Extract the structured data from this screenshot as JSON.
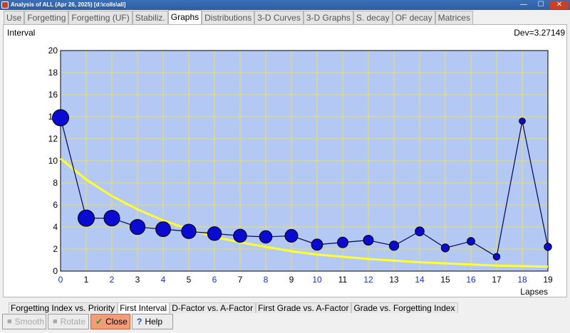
{
  "window": {
    "title": "Analysis of ALL (Apr 26, 2025) [d:\\colls\\all]",
    "min_glyph": "—",
    "max_glyph": "☐",
    "close_glyph": "✕"
  },
  "tabs": [
    "Use",
    "Forgetting",
    "Forgetting (UF)",
    "Stabiliz.",
    "Graphs",
    "Distributions",
    "3-D Curves",
    "3-D Graphs",
    "S. decay",
    "OF decay",
    "Matrices"
  ],
  "active_tab": "Graphs",
  "graph": {
    "y_axis_label": "Interval",
    "deviation": "Dev=3.27149"
  },
  "chart_data": {
    "type": "scatter",
    "xlabel": "Lapses",
    "ylabel": "Interval",
    "xlim": [
      0,
      19
    ],
    "ylim": [
      0,
      20
    ],
    "x_ticks": [
      0,
      1,
      2,
      3,
      4,
      5,
      6,
      7,
      8,
      9,
      10,
      11,
      12,
      13,
      14,
      15,
      16,
      17,
      18,
      19
    ],
    "y_ticks": [
      0,
      2,
      4,
      6,
      8,
      10,
      12,
      14,
      16,
      18,
      20
    ],
    "grid": true,
    "series": [
      {
        "x": [
          0,
          1,
          2,
          3,
          4,
          5,
          6,
          7,
          8,
          9,
          10,
          11,
          12,
          13,
          14,
          15,
          16,
          17,
          18,
          19
        ],
        "values": [
          13.9,
          4.8,
          4.8,
          4.0,
          3.8,
          3.6,
          3.4,
          3.2,
          3.1,
          3.2,
          2.4,
          2.6,
          2.8,
          2.3,
          3.6,
          2.1,
          2.7,
          1.3,
          13.6,
          2.2
        ],
        "marker_weight": [
          1.0,
          1.0,
          0.95,
          0.9,
          0.88,
          0.85,
          0.8,
          0.75,
          0.7,
          0.72,
          0.6,
          0.55,
          0.5,
          0.45,
          0.42,
          0.35,
          0.32,
          0.25,
          0.2,
          0.3
        ],
        "color": "#0a0ad0",
        "line_color": "#101060"
      },
      {
        "type": "line",
        "x": [
          0,
          1,
          2,
          3,
          4,
          5,
          6,
          7,
          8,
          9,
          10,
          11,
          12,
          13,
          14,
          15,
          16,
          17,
          18,
          19
        ],
        "values": [
          10.2,
          8.3,
          6.8,
          5.6,
          4.6,
          3.8,
          3.1,
          2.6,
          2.2,
          1.8,
          1.5,
          1.3,
          1.1,
          0.95,
          0.8,
          0.7,
          0.6,
          0.5,
          0.45,
          0.4
        ],
        "color": "#ffff30"
      }
    ],
    "tick_color_even": "#1a30c8",
    "tick_color_odd": "#000000",
    "background": "#b4c8f4",
    "grid_color": "#e8e060"
  },
  "subtabs": [
    "Forgetting Index vs. Priority",
    "First Interval",
    "D-Factor vs. A-Factor",
    "First Grade vs. A-Factor",
    "Grade vs. Forgetting Index"
  ],
  "active_subtab": "First Interval",
  "buttons": {
    "smooth": "Smooth",
    "rotate": "Rotate",
    "close": "Close",
    "help": "Help"
  },
  "icons": {
    "smooth": "smooth-icon",
    "rotate": "rotate-icon",
    "close": "check-icon",
    "help": "question-icon"
  }
}
